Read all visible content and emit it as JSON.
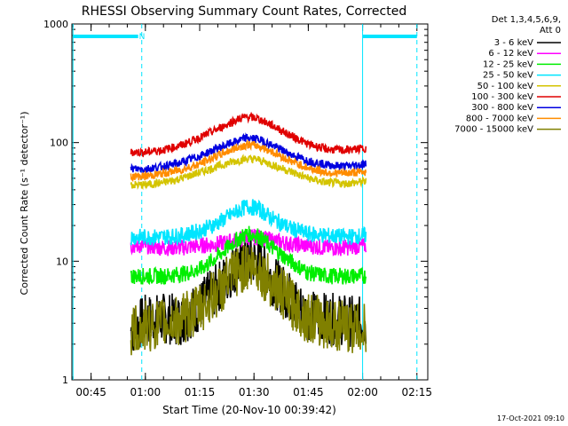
{
  "chart_data": {
    "type": "line",
    "title": "RHESSI Observing Summary Count Rates, Corrected",
    "xlabel": "Start Time (20-Nov-10 00:39:42)",
    "ylabel": "Corrected Count Rate (s⁻¹ detector⁻¹)",
    "yscale": "log",
    "ylim": [
      1,
      1000
    ],
    "xlim": [
      "00:39:42",
      "02:18:00"
    ],
    "x_ticks": [
      "00:45",
      "01:00",
      "01:15",
      "01:30",
      "01:45",
      "02:00",
      "02:15"
    ],
    "y_ticks": [
      "1",
      "10",
      "100",
      "1000"
    ],
    "legend_header": [
      "Det 1,3,4,5,6,9,",
      "Att 0"
    ],
    "legend_position": "right",
    "footer_timestamp": "17-Oct-2021 09:10",
    "attenuator_flag": "N",
    "times": [
      "00:56",
      "01:00",
      "01:05",
      "01:10",
      "01:15",
      "01:20",
      "01:25",
      "01:28",
      "01:31",
      "01:35",
      "01:40",
      "01:45",
      "01:50",
      "01:55",
      "02:01"
    ],
    "series": [
      {
        "name": "3 - 6 keV",
        "color": "#000000",
        "values": [
          2.6,
          3.2,
          3.3,
          3.2,
          4.2,
          6.0,
          9.0,
          10.5,
          10.0,
          7.0,
          5.0,
          3.5,
          3.3,
          3.2,
          3.0
        ]
      },
      {
        "name": "6 - 12 keV",
        "color": "#ff00ff",
        "values": [
          13.5,
          13.5,
          13.0,
          13.0,
          13.5,
          14.0,
          15.0,
          16.0,
          16.0,
          15.0,
          14.0,
          13.5,
          13.0,
          13.0,
          13.5
        ]
      },
      {
        "name": "12 - 25 keV",
        "color": "#00ee00",
        "values": [
          7.5,
          7.5,
          7.5,
          7.8,
          8.5,
          11.0,
          15.0,
          17.0,
          16.5,
          13.0,
          10.0,
          8.0,
          7.5,
          7.5,
          7.5
        ]
      },
      {
        "name": "25 - 50 keV",
        "color": "#00e5ff",
        "values": [
          16.0,
          16.0,
          16.0,
          16.5,
          18.0,
          21.0,
          26.0,
          29.0,
          28.0,
          23.0,
          19.0,
          17.0,
          16.5,
          16.0,
          16.5
        ]
      },
      {
        "name": "50 - 100 keV",
        "color": "#d4c400",
        "values": [
          44,
          44,
          46,
          50,
          56,
          63,
          70,
          73,
          72,
          65,
          57,
          50,
          46,
          45,
          47
        ]
      },
      {
        "name": "100 - 300 keV",
        "color": "#e00000",
        "values": [
          83,
          83,
          87,
          95,
          110,
          130,
          155,
          165,
          160,
          140,
          115,
          97,
          88,
          86,
          90
        ]
      },
      {
        "name": "300 - 800 keV",
        "color": "#0000e0",
        "values": [
          60,
          60,
          63,
          68,
          77,
          90,
          102,
          110,
          107,
          95,
          80,
          70,
          65,
          63,
          66
        ]
      },
      {
        "name": "800 - 7000 keV",
        "color": "#ff8c00",
        "values": [
          52,
          52,
          55,
          59,
          66,
          78,
          90,
          96,
          94,
          84,
          70,
          61,
          56,
          55,
          57
        ]
      },
      {
        "name": "7000 - 15000 keV",
        "color": "#808000",
        "values": [
          2.5,
          2.8,
          3.0,
          3.2,
          4.0,
          5.5,
          8.0,
          9.0,
          8.8,
          6.5,
          4.5,
          3.3,
          3.0,
          2.8,
          2.7
        ]
      }
    ],
    "grid": false
  }
}
